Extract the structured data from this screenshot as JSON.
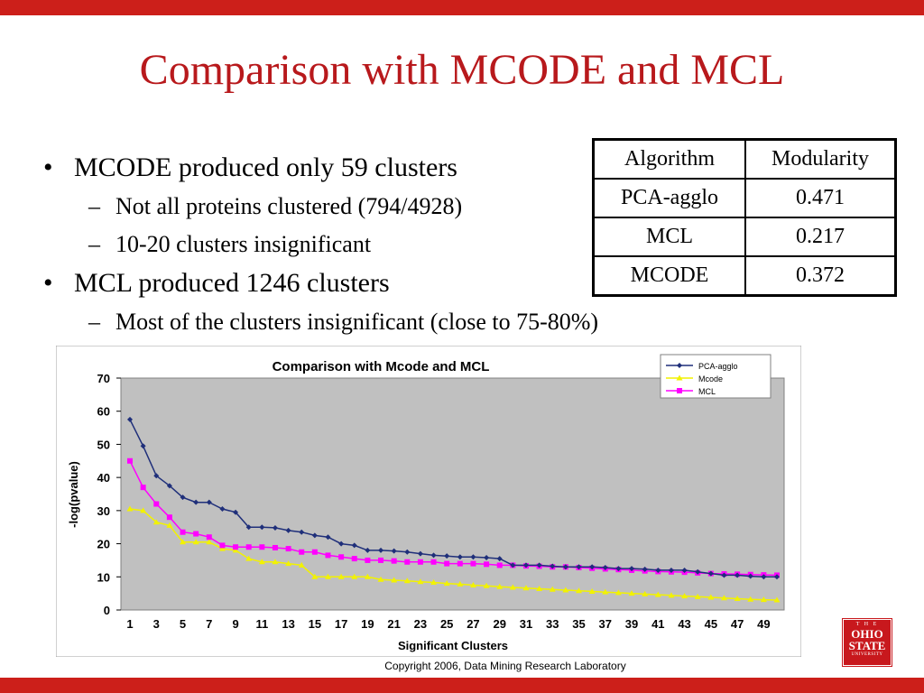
{
  "slide": {
    "title": "Comparison with MCODE and MCL",
    "copyright": "Copyright 2006, Data Mining Research Laboratory",
    "logo_lines": [
      "T H E",
      "OHIO",
      "STATE",
      "UNIVERSITY"
    ]
  },
  "bullets": [
    {
      "level": 1,
      "symbol": "•",
      "text": "MCODE produced only 59 clusters"
    },
    {
      "level": 2,
      "symbol": "–",
      "text": "Not all proteins clustered (794/4928)"
    },
    {
      "level": 2,
      "symbol": "–",
      "text": "10-20 clusters insignificant"
    },
    {
      "level": 1,
      "symbol": "•",
      "text": "MCL produced 1246 clusters"
    },
    {
      "level": 2,
      "symbol": "–",
      "text": "Most of the clusters insignificant (close to 75-80%)"
    }
  ],
  "modularity_table": {
    "headers": [
      "Algorithm",
      "Modularity"
    ],
    "rows": [
      [
        "PCA-agglo",
        "0.471"
      ],
      [
        "MCL",
        "0.217"
      ],
      [
        "MCODE",
        "0.372"
      ]
    ]
  },
  "chart_data": {
    "type": "line",
    "title": "Comparison with Mcode and MCL",
    "xlabel": "Significant Clusters",
    "ylabel": "-log(pvalue)",
    "ylim": [
      0,
      70
    ],
    "yticks": [
      0,
      10,
      20,
      30,
      40,
      50,
      60,
      70
    ],
    "x": [
      1,
      2,
      3,
      4,
      5,
      6,
      7,
      8,
      9,
      10,
      11,
      12,
      13,
      14,
      15,
      16,
      17,
      18,
      19,
      20,
      21,
      22,
      23,
      24,
      25,
      26,
      27,
      28,
      29,
      30,
      31,
      32,
      33,
      34,
      35,
      36,
      37,
      38,
      39,
      40,
      41,
      42,
      43,
      44,
      45,
      46,
      47,
      48,
      49,
      50
    ],
    "xtick_labels": [
      "1",
      "3",
      "5",
      "7",
      "9",
      "11",
      "13",
      "15",
      "17",
      "19",
      "21",
      "23",
      "25",
      "27",
      "29",
      "31",
      "33",
      "35",
      "37",
      "39",
      "41",
      "43",
      "45",
      "47",
      "49"
    ],
    "grid": false,
    "legend_position": "top-right",
    "colors": {
      "plot_bg": "#c0c0c0",
      "frame_bg": "#ffffff"
    },
    "series": [
      {
        "name": "PCA-agglo",
        "color": "#1f2f7a",
        "marker": "diamond",
        "values": [
          57.5,
          49.5,
          40.5,
          37.5,
          34,
          32.5,
          32.5,
          30.5,
          29.5,
          25,
          25,
          24.8,
          24,
          23.5,
          22.5,
          22,
          20,
          19.5,
          18,
          18,
          17.8,
          17.5,
          17,
          16.5,
          16.3,
          16,
          16,
          15.8,
          15.5,
          13.5,
          13.5,
          13.5,
          13.2,
          13,
          13,
          13,
          12.8,
          12.5,
          12.5,
          12.3,
          12,
          12,
          12,
          11.5,
          11,
          10.5,
          10.5,
          10.2,
          10,
          10
        ]
      },
      {
        "name": "Mcode",
        "color": "#f2f200",
        "marker": "triangle",
        "values": [
          30.5,
          30,
          26.5,
          25.5,
          20.5,
          20.5,
          20.5,
          18.5,
          18,
          15.5,
          14.5,
          14.5,
          14,
          13.5,
          10,
          10,
          10,
          10,
          10,
          9.2,
          9,
          8.8,
          8.5,
          8.3,
          8,
          7.8,
          7.5,
          7.3,
          7,
          6.8,
          6.6,
          6.4,
          6.2,
          6,
          5.8,
          5.6,
          5.4,
          5.2,
          5,
          4.8,
          4.6,
          4.4,
          4.2,
          4,
          3.8,
          3.6,
          3.4,
          3.2,
          3.1,
          3
        ]
      },
      {
        "name": "MCL",
        "color": "#ff00ff",
        "marker": "square",
        "values": [
          45,
          37,
          32,
          28,
          23.5,
          23,
          22,
          19.5,
          19,
          19,
          19,
          18.8,
          18.5,
          17.5,
          17.5,
          16.5,
          16,
          15.5,
          15,
          15,
          14.8,
          14.5,
          14.5,
          14.5,
          14,
          14,
          14,
          13.8,
          13.5,
          13.5,
          13.3,
          13.2,
          13,
          13,
          12.8,
          12.6,
          12.4,
          12.2,
          12,
          11.8,
          11.6,
          11.5,
          11.4,
          11.2,
          11,
          10.9,
          10.8,
          10.7,
          10.6,
          10.5
        ]
      }
    ]
  }
}
